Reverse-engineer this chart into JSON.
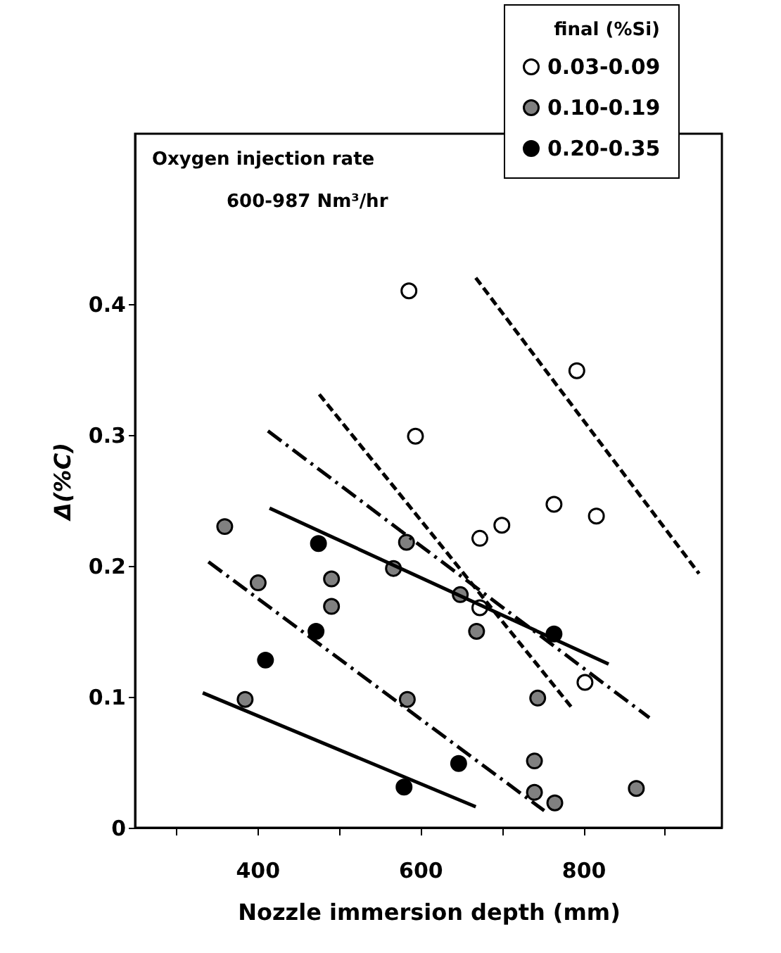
{
  "chart_data": {
    "type": "scatter",
    "xlabel": "Nozzle immersion depth (mm)",
    "ylabel": "Δ(%C)",
    "legend_title": "final (%Si)",
    "legend": "top right",
    "grid": false,
    "annotations": [
      "Oxygen injection rate",
      "600-987 Nm³/hr"
    ],
    "xlim": [
      250,
      970
    ],
    "xticks": [
      {
        "value": 300,
        "label": null
      },
      400,
      {
        "value": 500,
        "label": null
      },
      600,
      {
        "value": 700,
        "label": null
      },
      800,
      {
        "value": 900,
        "label": null
      }
    ],
    "ylim": [
      0,
      0.53
    ],
    "yticks": [
      0,
      0.1,
      0.2,
      0.3,
      0.4
    ],
    "series": [
      {
        "name": "0.03-0.09",
        "marker": "circle",
        "color": "#ffffff",
        "x": [
          586,
          792,
          594,
          764,
          816,
          700,
          673,
          673,
          802
        ],
        "values": [
          0.41,
          0.349,
          0.299,
          0.247,
          0.238,
          0.231,
          0.221,
          0.168,
          0.111
        ]
      },
      {
        "name": "0.10-0.19",
        "marker": "circle",
        "color": "#808080",
        "x": [
          360,
          401,
          491,
          491,
          583,
          567,
          649,
          669,
          385,
          584,
          744,
          740,
          740,
          765,
          865
        ],
        "values": [
          0.23,
          0.187,
          0.19,
          0.169,
          0.218,
          0.198,
          0.178,
          0.15,
          0.098,
          0.098,
          0.099,
          0.051,
          0.027,
          0.019,
          0.03
        ]
      },
      {
        "name": "0.20-0.35",
        "marker": "circle",
        "color": "#000000",
        "x": [
          475,
          472,
          410,
          764,
          647,
          580
        ],
        "values": [
          0.217,
          0.15,
          0.128,
          0.148,
          0.049,
          0.031
        ]
      },
      {
        "type": "line",
        "color": "#000000",
        "line_style": "dashed",
        "marker": "none",
        "x": [
          476,
          788
        ],
        "values": [
          0.331,
          0.09
        ]
      },
      {
        "type": "line",
        "color": "#000000",
        "line_style": "dashed",
        "marker": "none",
        "x": [
          668,
          942
        ],
        "values": [
          0.42,
          0.194
        ]
      },
      {
        "type": "line",
        "color": "#000000",
        "line_style": "dashdot",
        "marker": "none",
        "x": [
          413,
          881
        ],
        "values": [
          0.303,
          0.084
        ]
      },
      {
        "type": "line",
        "color": "#000000",
        "line_style": "dashdot",
        "marker": "none",
        "x": [
          340,
          752
        ],
        "values": [
          0.203,
          0.013
        ]
      },
      {
        "type": "line",
        "color": "#000000",
        "line_style": "solid",
        "marker": "none",
        "x": [
          415,
          831
        ],
        "values": [
          0.244,
          0.125
        ]
      },
      {
        "type": "line",
        "color": "#000000",
        "line_style": "solid",
        "marker": "none",
        "x": [
          333,
          668
        ],
        "values": [
          0.103,
          0.016
        ]
      }
    ]
  }
}
